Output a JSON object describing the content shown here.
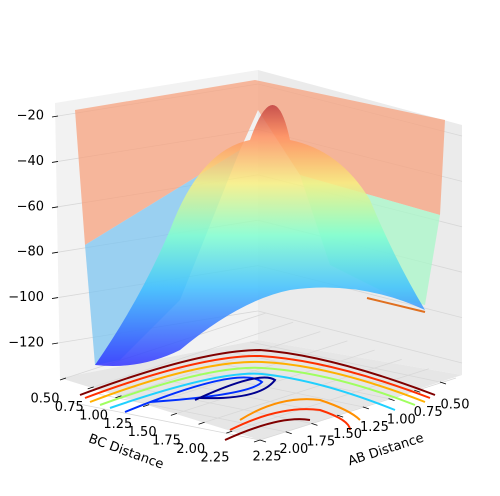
{
  "chart_data": {
    "type": "surface3d",
    "xlabel": "BC Distance",
    "ylabel": "AB Distance",
    "xlim": [
      0.5,
      2.25
    ],
    "xticks": [
      {
        "value": 0.5,
        "label": "0.50"
      },
      0.75,
      {
        "value": 1.0,
        "label": "1.00"
      },
      1.25,
      {
        "value": 1.5,
        "label": "1.50"
      },
      1.75,
      {
        "value": 2.0,
        "label": "2.00"
      },
      2.25
    ],
    "ylim": [
      0.5,
      2.25
    ],
    "yticks": [
      {
        "value": 0.5,
        "label": "0.50"
      },
      0.75,
      {
        "value": 1.0,
        "label": "1.00"
      },
      1.25,
      {
        "value": 1.5,
        "label": "1.50"
      },
      1.75,
      {
        "value": 2.0,
        "label": "2.00"
      },
      2.25
    ],
    "zlim": [
      -135,
      -18
    ],
    "zticks": [
      {
        "value": -20,
        "label": "−20"
      },
      {
        "value": -40,
        "label": "−40"
      },
      {
        "value": -60,
        "label": "−60"
      },
      {
        "value": -80,
        "label": "−80"
      },
      {
        "value": -100,
        "label": "−100"
      },
      {
        "value": -120,
        "label": "−120"
      }
    ],
    "grid": true,
    "colormap": "jet"
  }
}
